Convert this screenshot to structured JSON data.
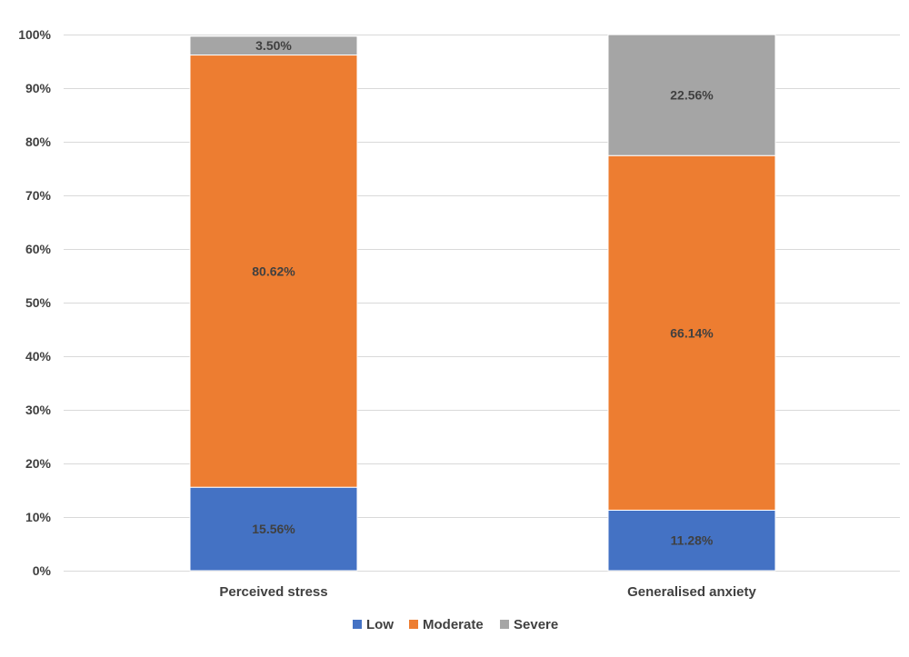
{
  "chart_data": {
    "type": "bar",
    "stacked": true,
    "normalized": true,
    "categories": [
      "Perceived stress",
      "Generalised anxiety"
    ],
    "series": [
      {
        "name": "Low",
        "values": [
          15.56,
          11.28
        ],
        "labels": [
          "15.56%",
          "11.28%"
        ],
        "color": "#4472C4"
      },
      {
        "name": "Moderate",
        "values": [
          80.62,
          66.14
        ],
        "labels": [
          "80.62%",
          "66.14%"
        ],
        "color": "#ED7D31"
      },
      {
        "name": "Severe",
        "values": [
          3.5,
          22.56
        ],
        "labels": [
          "3.50%",
          "22.56%"
        ],
        "color": "#A5A5A5"
      }
    ],
    "ylim": [
      0,
      100
    ],
    "yticks": [
      0,
      10,
      20,
      30,
      40,
      50,
      60,
      70,
      80,
      90,
      100
    ],
    "ytick_labels": [
      "0%",
      "10%",
      "20%",
      "30%",
      "40%",
      "50%",
      "60%",
      "70%",
      "80%",
      "90%",
      "100%"
    ],
    "grid": true,
    "legend_position": "bottom",
    "title": "",
    "xlabel": "",
    "ylabel": ""
  }
}
